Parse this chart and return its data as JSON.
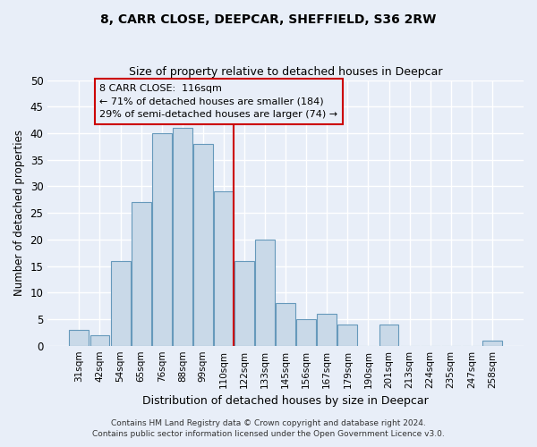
{
  "title1": "8, CARR CLOSE, DEEPCAR, SHEFFIELD, S36 2RW",
  "title2": "Size of property relative to detached houses in Deepcar",
  "xlabel": "Distribution of detached houses by size in Deepcar",
  "ylabel": "Number of detached properties",
  "categories": [
    "31sqm",
    "42sqm",
    "54sqm",
    "65sqm",
    "76sqm",
    "88sqm",
    "99sqm",
    "110sqm",
    "122sqm",
    "133sqm",
    "145sqm",
    "156sqm",
    "167sqm",
    "179sqm",
    "190sqm",
    "201sqm",
    "213sqm",
    "224sqm",
    "235sqm",
    "247sqm",
    "258sqm"
  ],
  "values": [
    3,
    2,
    16,
    27,
    40,
    41,
    38,
    29,
    16,
    20,
    8,
    5,
    6,
    4,
    0,
    4,
    0,
    0,
    0,
    0,
    1
  ],
  "bar_color": "#c9d9e8",
  "bar_edge_color": "#6699bb",
  "property_line_index": 7.5,
  "property_line_color": "#cc0000",
  "annotation_text": "8 CARR CLOSE:  116sqm\n← 71% of detached houses are smaller (184)\n29% of semi-detached houses are larger (74) →",
  "annotation_box_color": "#cc0000",
  "ylim": [
    0,
    50
  ],
  "yticks": [
    0,
    5,
    10,
    15,
    20,
    25,
    30,
    35,
    40,
    45,
    50
  ],
  "background_color": "#e8eef8",
  "grid_color": "#ffffff",
  "footer1": "Contains HM Land Registry data © Crown copyright and database right 2024.",
  "footer2": "Contains public sector information licensed under the Open Government Licence v3.0."
}
